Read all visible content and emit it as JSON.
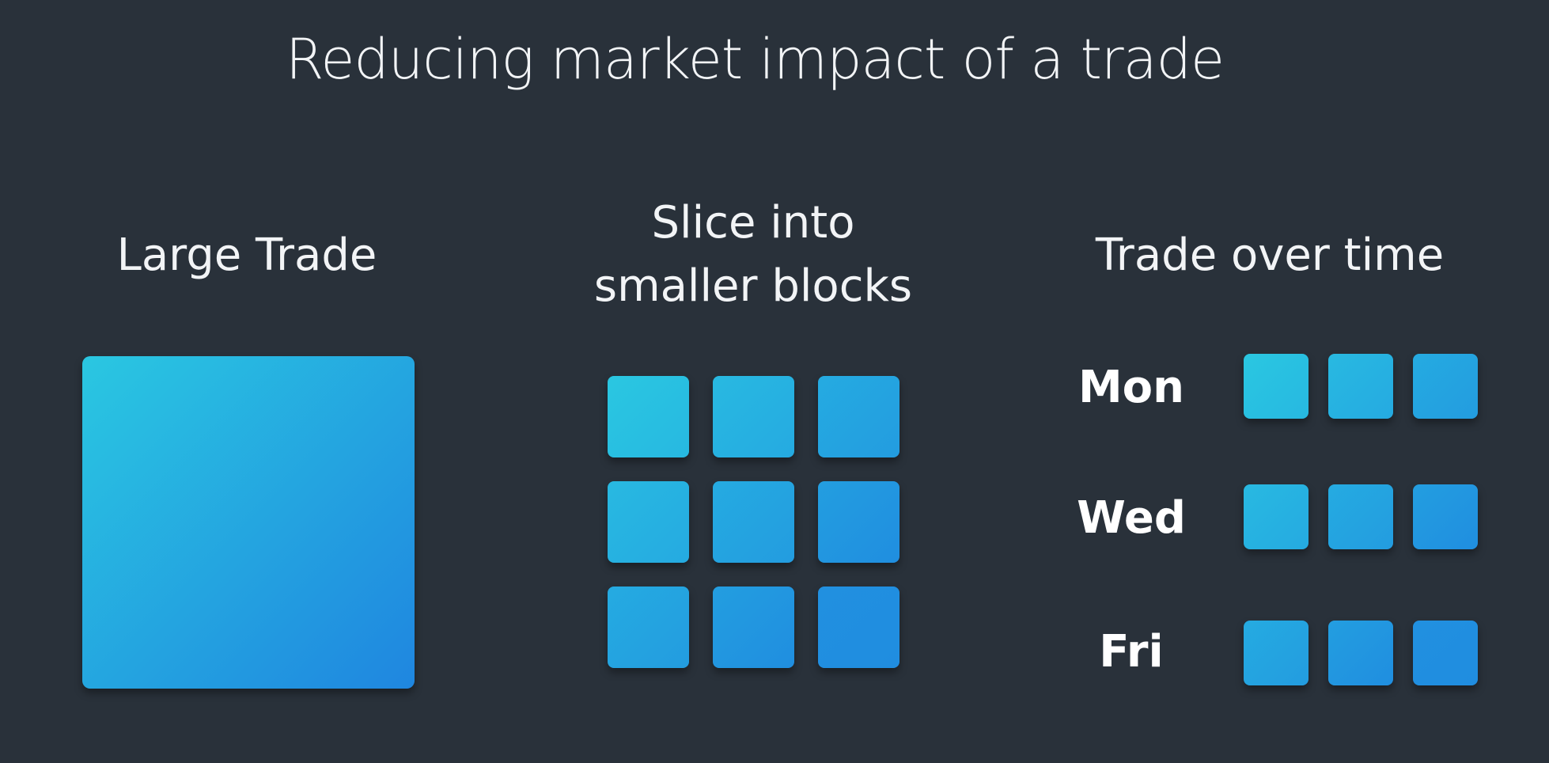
{
  "title": "Reducing market impact of a trade",
  "columns": {
    "large": {
      "heading": "Large Trade"
    },
    "slice": {
      "heading_line1": "Slice into",
      "heading_line2": "smaller blocks"
    },
    "time": {
      "heading": "Trade over time",
      "days": [
        "Mon",
        "Wed",
        "Fri"
      ]
    }
  },
  "colors": {
    "background": "#29313a",
    "block_light": "#2ac7e1",
    "block_dark": "#1f86e0",
    "text": "#f2f4f6"
  }
}
